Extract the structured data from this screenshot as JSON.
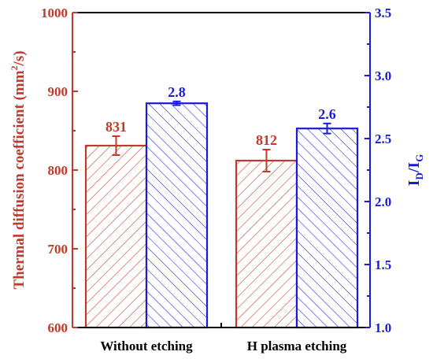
{
  "chart_data": {
    "type": "bar",
    "categories": [
      "Without etching",
      "H plasma etching"
    ],
    "y_left": {
      "label_main": "Thermal diffusion coefficient (mm",
      "label_sup": "2",
      "label_end": "/s)",
      "lim": [
        600,
        1000
      ],
      "ticks": [
        "600",
        "700",
        "800",
        "900",
        "1000"
      ],
      "color": "#c0392b"
    },
    "y_right": {
      "label_main": "I",
      "label_sub1": "D",
      "label_mid": "/I",
      "label_sub2": "G",
      "lim": [
        1.0,
        3.5
      ],
      "ticks": [
        "1.0",
        "1.5",
        "2.0",
        "2.5",
        "3.0",
        "3.5"
      ],
      "color": "#1a1adb"
    },
    "series": [
      {
        "axis": "left",
        "values": [
          831,
          812
        ],
        "errors": [
          12,
          14
        ],
        "labels": [
          "831",
          "812"
        ],
        "color": "#c0392b",
        "hatch": "forward-diagonal"
      },
      {
        "axis": "right",
        "values": [
          2.78,
          2.58
        ],
        "errors": [
          0.015,
          0.04
        ],
        "labels": [
          "2.8",
          "2.6"
        ],
        "color": "#1a1adb",
        "hatch": "back-diagonal"
      }
    ]
  }
}
